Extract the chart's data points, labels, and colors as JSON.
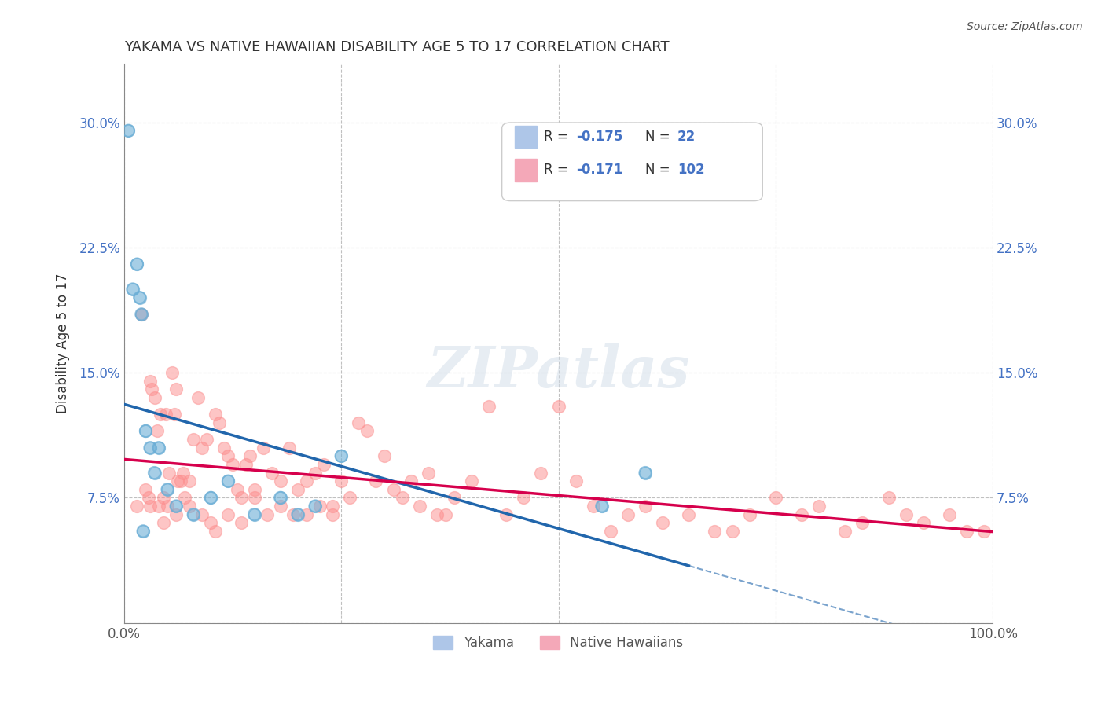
{
  "title": "YAKAMA VS NATIVE HAWAIIAN DISABILITY AGE 5 TO 17 CORRELATION CHART",
  "source": "Source: ZipAtlas.com",
  "xlabel": "",
  "ylabel": "Disability Age 5 to 17",
  "xlim": [
    0,
    100
  ],
  "ylim": [
    0,
    33.5
  ],
  "yticks": [
    0,
    7.5,
    15.0,
    22.5,
    30.0
  ],
  "xticks": [
    0,
    25,
    50,
    75,
    100
  ],
  "xticklabels": [
    "0.0%",
    "",
    "",
    "",
    "100.0%"
  ],
  "yticklabels": [
    "",
    "7.5%",
    "15.0%",
    "22.5%",
    "30.0%"
  ],
  "background_color": "#ffffff",
  "watermark": "ZIPatlas",
  "legend_R_blue": "R = -0.175",
  "legend_N_blue": "N =  22",
  "legend_R_pink": "R = -0.171",
  "legend_N_pink": "N = 102",
  "blue_color": "#6baed6",
  "pink_color": "#fc8d8d",
  "blue_line_color": "#2166ac",
  "pink_line_color": "#d6004c",
  "grid_color": "#c0c0c0",
  "yakama_x": [
    0.5,
    1.0,
    1.5,
    1.8,
    2.0,
    2.5,
    3.0,
    3.5,
    4.0,
    5.0,
    6.0,
    8.0,
    10.0,
    12.0,
    15.0,
    18.0,
    20.0,
    22.0,
    55.0,
    60.0,
    25.0,
    2.2
  ],
  "yakama_y": [
    29.5,
    20.0,
    21.5,
    19.5,
    18.5,
    11.5,
    10.5,
    9.0,
    10.5,
    8.0,
    7.0,
    6.5,
    7.5,
    8.5,
    6.5,
    7.5,
    6.5,
    7.0,
    7.0,
    9.0,
    10.0,
    5.5
  ],
  "native_x": [
    2.0,
    2.5,
    2.8,
    3.0,
    3.2,
    3.5,
    3.8,
    4.0,
    4.2,
    4.5,
    4.8,
    5.0,
    5.2,
    5.5,
    5.8,
    6.0,
    6.2,
    6.5,
    6.8,
    7.0,
    7.5,
    8.0,
    8.5,
    9.0,
    9.5,
    10.0,
    10.5,
    11.0,
    11.5,
    12.0,
    12.5,
    13.0,
    13.5,
    14.0,
    14.5,
    15.0,
    16.0,
    17.0,
    18.0,
    19.0,
    20.0,
    21.0,
    22.0,
    23.0,
    24.0,
    25.0,
    26.0,
    27.0,
    28.0,
    29.0,
    30.0,
    31.0,
    32.0,
    33.0,
    34.0,
    35.0,
    36.0,
    37.0,
    38.0,
    40.0,
    42.0,
    44.0,
    46.0,
    48.0,
    50.0,
    52.0,
    54.0,
    56.0,
    58.0,
    60.0,
    62.0,
    65.0,
    68.0,
    70.0,
    72.0,
    75.0,
    78.0,
    80.0,
    83.0,
    85.0,
    88.0,
    90.0,
    92.0,
    95.0,
    97.0,
    99.0,
    1.5,
    3.0,
    4.5,
    6.0,
    7.5,
    9.0,
    10.5,
    12.0,
    13.5,
    15.0,
    16.5,
    18.0,
    19.5,
    21.0,
    22.5,
    24.0
  ],
  "native_y": [
    18.5,
    8.0,
    7.5,
    14.5,
    14.0,
    13.5,
    11.5,
    7.0,
    12.5,
    7.5,
    12.5,
    7.0,
    9.0,
    15.0,
    12.5,
    14.0,
    8.5,
    8.5,
    9.0,
    7.5,
    8.5,
    11.0,
    13.5,
    10.5,
    11.0,
    6.0,
    12.5,
    12.0,
    10.5,
    10.0,
    9.5,
    8.0,
    7.5,
    9.5,
    10.0,
    8.0,
    10.5,
    9.0,
    8.5,
    10.5,
    8.0,
    8.5,
    9.0,
    9.5,
    7.0,
    8.5,
    7.5,
    12.0,
    11.5,
    8.5,
    10.0,
    8.0,
    7.5,
    8.5,
    7.0,
    9.0,
    6.5,
    6.5,
    7.5,
    8.5,
    13.0,
    6.5,
    7.5,
    9.0,
    13.0,
    8.5,
    7.0,
    5.5,
    6.5,
    7.0,
    6.0,
    6.5,
    5.5,
    5.5,
    6.5,
    7.5,
    6.5,
    7.0,
    5.5,
    6.0,
    7.5,
    6.5,
    6.0,
    6.5,
    5.5,
    5.5,
    7.0,
    7.0,
    6.0,
    6.5,
    7.0,
    6.5,
    5.5,
    6.5,
    6.0,
    7.5,
    6.5,
    7.0,
    6.5,
    6.5,
    7.0,
    6.5
  ]
}
